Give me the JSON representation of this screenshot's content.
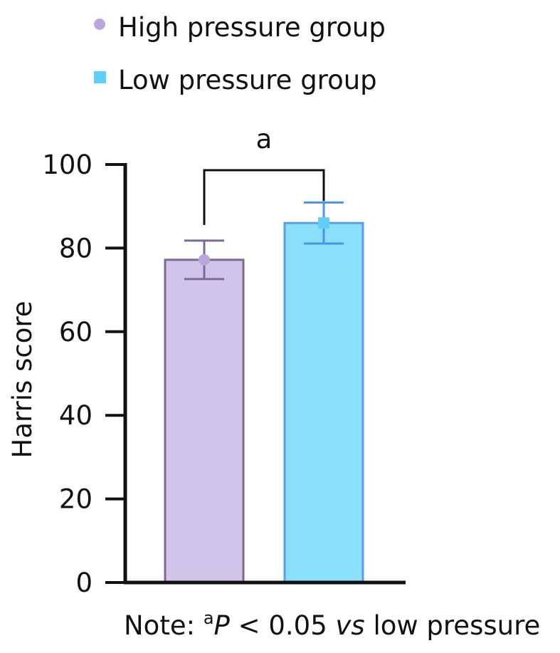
{
  "chart_data": {
    "type": "bar",
    "title": "",
    "xlabel": "",
    "ylabel": "Harris score",
    "ylim": [
      0,
      100
    ],
    "yticks": [
      0,
      20,
      40,
      60,
      80,
      100
    ],
    "legend_position": "top-left",
    "grid": false,
    "categories": [
      "High pressure group",
      "Low pressure group"
    ],
    "series": [
      {
        "name": "High pressure group",
        "value": 77.2,
        "error": 4.6,
        "marker": "circle",
        "fill": "#d1c4e9",
        "stroke": "#7b6b96",
        "error_color": "#7b6b96",
        "marker_color": "#b9a6dc"
      },
      {
        "name": "Low pressure group",
        "value": 86.0,
        "error": 4.9,
        "marker": "square",
        "fill": "#8ae0fb",
        "stroke": "#5b9de8",
        "error_color": "#4f93e6",
        "marker_color": "#5fd0f5"
      }
    ],
    "significance": {
      "label": "a",
      "pair": [
        0,
        1
      ]
    },
    "note": {
      "prefix": "Note: ",
      "sup": "a",
      "p": "P",
      "mid": " < 0.05 ",
      "vs": "vs",
      "suffix": " low pressure"
    }
  }
}
